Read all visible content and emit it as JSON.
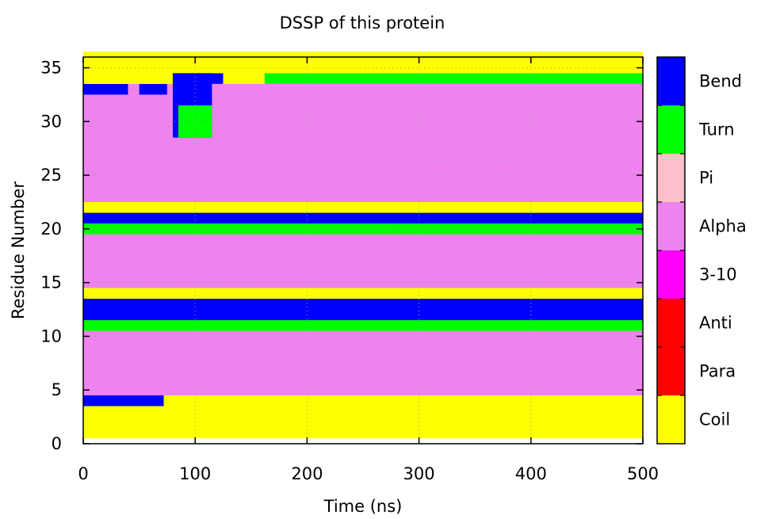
{
  "chart_data": {
    "type": "heatmap",
    "title": "DSSP of this protein",
    "xlabel": "Time (ns)",
    "ylabel": "Residue Number",
    "xlim": [
      0,
      500
    ],
    "ylim": [
      0,
      36
    ],
    "x_ticks": [
      "0",
      "100",
      "200",
      "300",
      "400",
      "500"
    ],
    "y_ticks": [
      "0",
      "5",
      "10",
      "15",
      "20",
      "25",
      "30",
      "35"
    ],
    "grid": true,
    "legend_position": "right colorbar",
    "states": [
      {
        "name": "Coil",
        "color": "#ffff00"
      },
      {
        "name": "Para",
        "color": "#ff0000"
      },
      {
        "name": "Anti",
        "color": "#ff0000"
      },
      {
        "name": "3-10",
        "color": "#ff00ff"
      },
      {
        "name": "Alpha",
        "color": "#ee82ee"
      },
      {
        "name": "Pi",
        "color": "#ffc0cb"
      },
      {
        "name": "Turn",
        "color": "#00ff00"
      },
      {
        "name": "Bend",
        "color": "#0000ff"
      }
    ],
    "residue_segments": [
      {
        "residues": [
          1,
          3
        ],
        "segments": [
          {
            "t": [
              0,
              500
            ],
            "state": "Coil"
          }
        ]
      },
      {
        "residues": [
          4,
          4
        ],
        "segments": [
          {
            "t": [
              0,
              72
            ],
            "state": "Bend"
          },
          {
            "t": [
              72,
              500
            ],
            "state": "Coil"
          }
        ]
      },
      {
        "residues": [
          5,
          10
        ],
        "segments": [
          {
            "t": [
              0,
              500
            ],
            "state": "Alpha"
          }
        ]
      },
      {
        "residues": [
          11,
          11
        ],
        "segments": [
          {
            "t": [
              0,
              500
            ],
            "state": "Turn"
          }
        ]
      },
      {
        "residues": [
          12,
          13
        ],
        "segments": [
          {
            "t": [
              0,
              500
            ],
            "state": "Bend"
          }
        ]
      },
      {
        "residues": [
          14,
          14
        ],
        "segments": [
          {
            "t": [
              0,
              500
            ],
            "state": "Coil"
          }
        ]
      },
      {
        "residues": [
          15,
          19
        ],
        "segments": [
          {
            "t": [
              0,
              500
            ],
            "state": "Alpha"
          }
        ]
      },
      {
        "residues": [
          20,
          20
        ],
        "segments": [
          {
            "t": [
              0,
              500
            ],
            "state": "Turn"
          }
        ]
      },
      {
        "residues": [
          21,
          21
        ],
        "segments": [
          {
            "t": [
              0,
              500
            ],
            "state": "Bend"
          }
        ]
      },
      {
        "residues": [
          22,
          22
        ],
        "segments": [
          {
            "t": [
              0,
              500
            ],
            "state": "Coil"
          }
        ]
      },
      {
        "residues": [
          23,
          32
        ],
        "segments": [
          {
            "t": [
              0,
              500
            ],
            "state": "Alpha"
          }
        ]
      },
      {
        "residues": [
          33,
          33
        ],
        "segments": [
          {
            "t": [
              0,
              40
            ],
            "state": "Bend"
          },
          {
            "t": [
              40,
              50
            ],
            "state": "Alpha"
          },
          {
            "t": [
              50,
              75
            ],
            "state": "Bend"
          },
          {
            "t": [
              75,
              500
            ],
            "state": "Alpha"
          }
        ]
      },
      {
        "residues": [
          34,
          34
        ],
        "segments": [
          {
            "t": [
              0,
              80
            ],
            "state": "Coil"
          },
          {
            "t": [
              80,
              125
            ],
            "state": "Bend"
          },
          {
            "t": [
              125,
              162
            ],
            "state": "Coil"
          },
          {
            "t": [
              162,
              500
            ],
            "state": "Turn"
          }
        ]
      },
      {
        "residues": [
          35,
          36
        ],
        "segments": [
          {
            "t": [
              0,
              500
            ],
            "state": "Coil"
          }
        ]
      }
    ],
    "patches": [
      {
        "residues": [
          29,
          34
        ],
        "t": [
          80,
          115
        ],
        "state": "Bend"
      },
      {
        "residues": [
          29,
          31
        ],
        "t": [
          85,
          115
        ],
        "state": "Turn"
      }
    ]
  }
}
